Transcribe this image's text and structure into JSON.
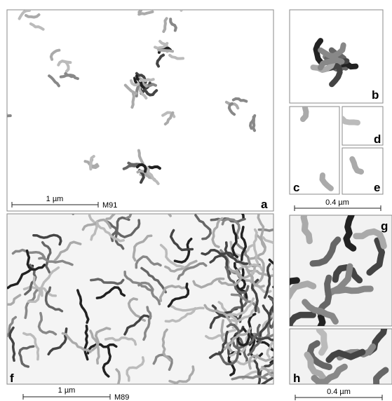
{
  "panels": [
    {
      "label": "a"
    },
    {
      "label": "b"
    },
    {
      "label": "c"
    },
    {
      "label": "d"
    },
    {
      "label": "e"
    },
    {
      "label": "f"
    },
    {
      "label": "g"
    },
    {
      "label": "h"
    }
  ],
  "scale_bars": [
    {
      "length": "1 µm",
      "sample": "M91"
    },
    {
      "length": "0.4 µm"
    },
    {
      "length": "1 µm",
      "sample": "M89"
    },
    {
      "length": "0.4 µm"
    }
  ]
}
